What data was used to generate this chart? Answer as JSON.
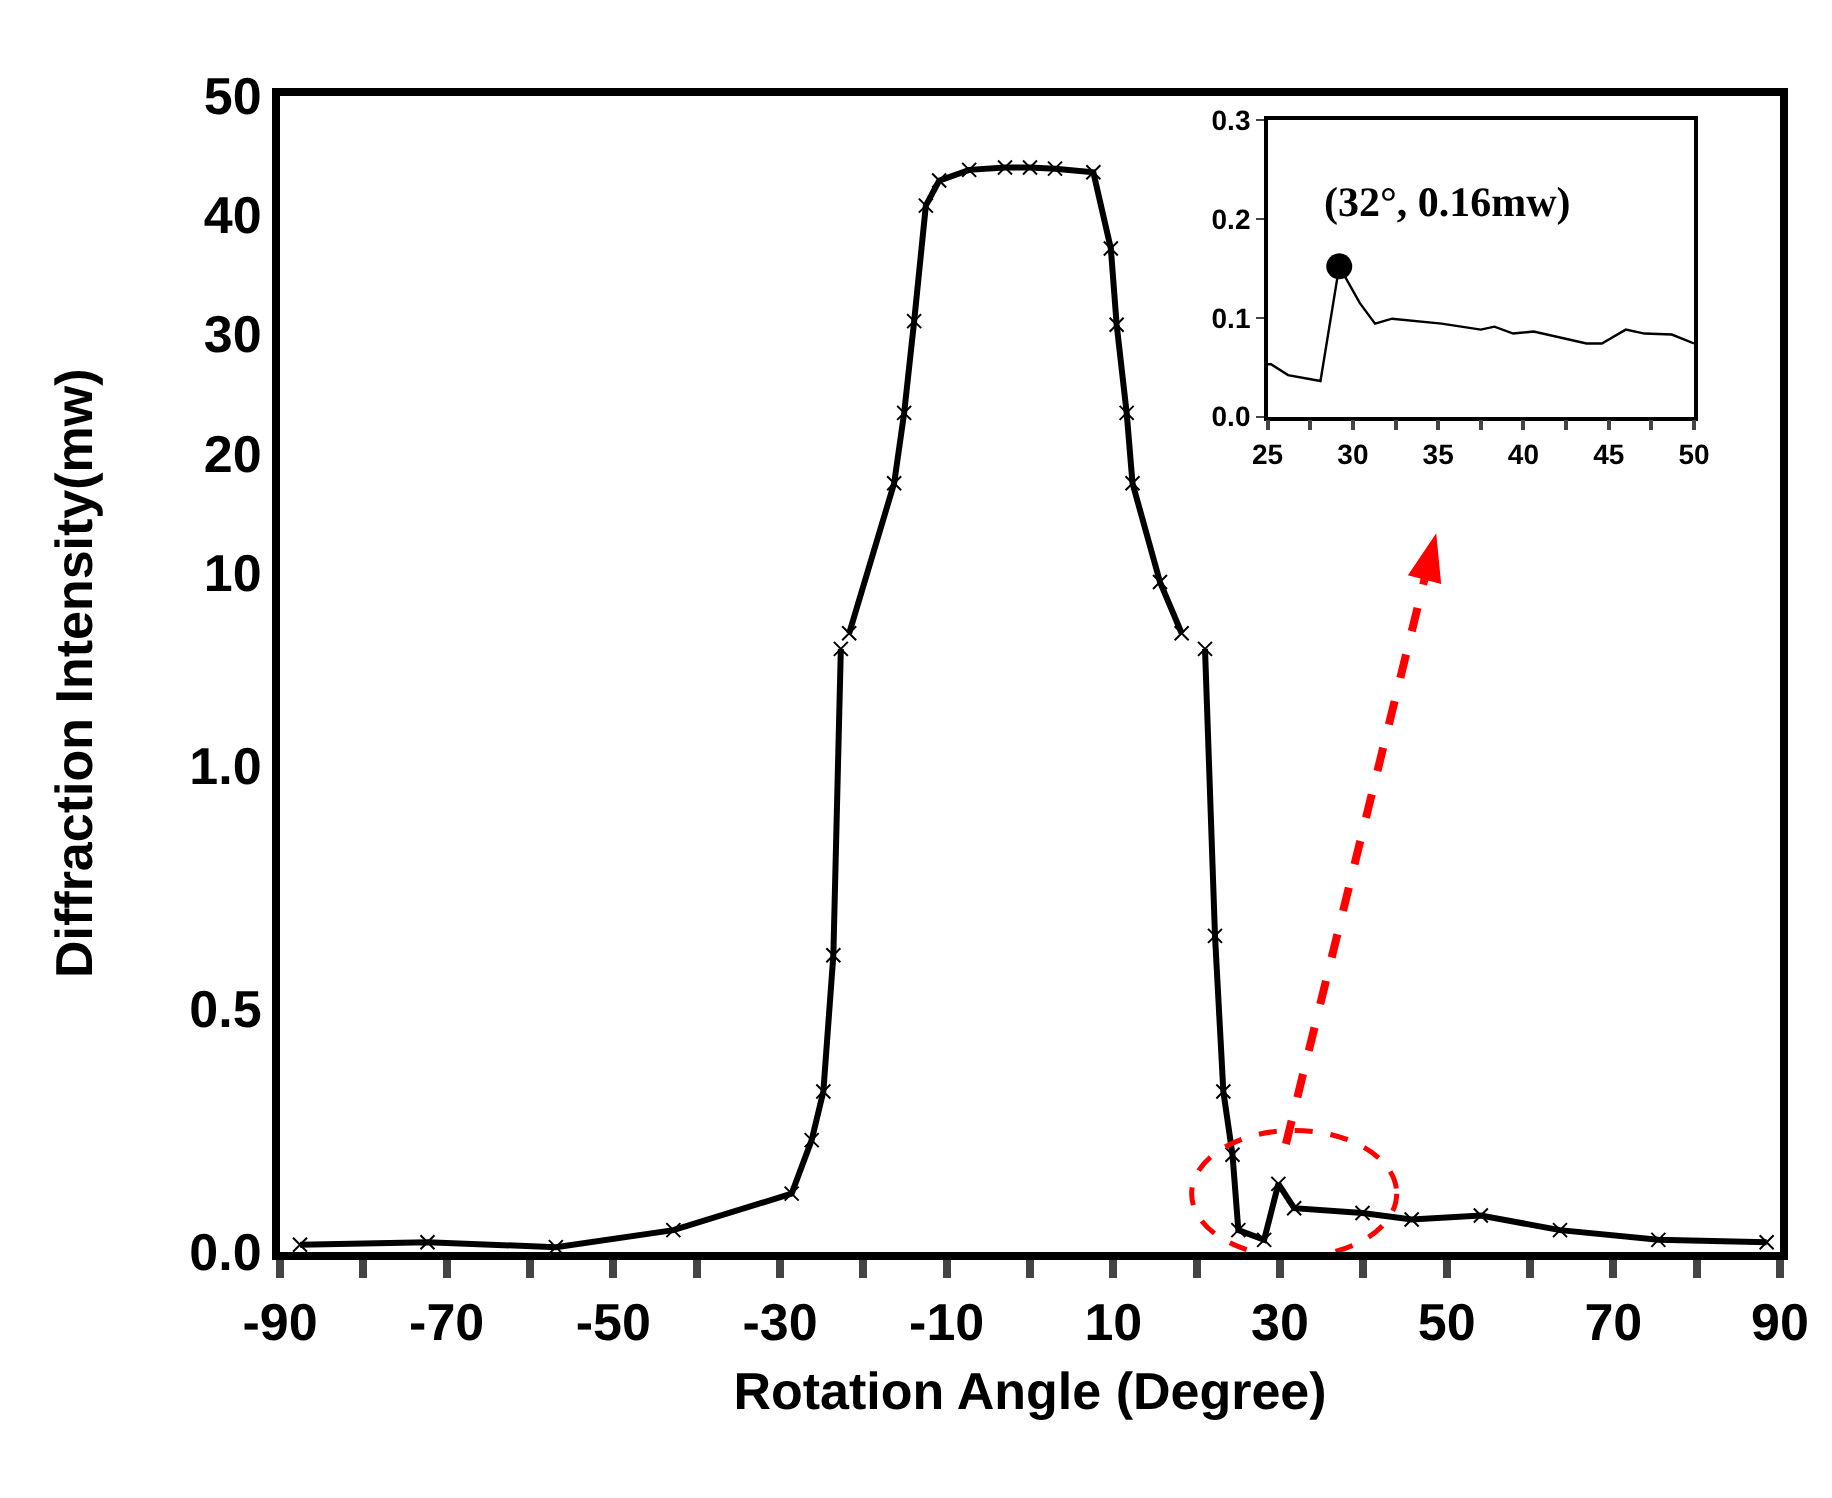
{
  "chart_data": [
    {
      "type": "line",
      "x": [
        -21.7,
        -16.3,
        -15.1,
        -13.9,
        -12.5,
        -10.9,
        -7.3,
        -3,
        0,
        3,
        7.6,
        9.7,
        10.4,
        11.6,
        12.3,
        15.6,
        18.2
      ],
      "series": [
        {
          "color": "#000000",
          "values": [
            4.9,
            17.5,
            23.4,
            31.1,
            40.8,
            42.9,
            43.8,
            44,
            44,
            43.9,
            43.6,
            37.2,
            30.8,
            23.4,
            17.5,
            9.2,
            4.9
          ]
        }
      ],
      "xlim": [
        -90,
        90
      ],
      "ylim": [
        4,
        50
      ],
      "yticks": [
        10,
        20,
        30,
        40,
        50
      ],
      "tick_labels": "y",
      "marker": "cross",
      "line_style": "solid"
    },
    {
      "type": "line",
      "x": [
        -87.6,
        -72.3,
        -56.9,
        -42.8,
        -28.6,
        -26.2,
        -24.8,
        -23.6,
        -22.7,
        0,
        21.0,
        22.2,
        23.2,
        24.3,
        25.0,
        28.1,
        29.8,
        31.7,
        39.9,
        45.8,
        54.1,
        63.6,
        75.4,
        88.4
      ],
      "series": [
        {
          "color": "#000000",
          "values": [
            0.015,
            0.02,
            0.01,
            0.045,
            0.12,
            0.23,
            0.33,
            0.61,
            1.24,
            null,
            1.24,
            0.65,
            0.33,
            0.2,
            0.045,
            0.025,
            0.14,
            0.09,
            0.08,
            0.067,
            0.075,
            0.045,
            0.025,
            0.02
          ]
        }
      ],
      "xlabel": "Rotation Angle (Degree)",
      "ylabel": "Diffraction Intensity(mw)",
      "xlim": [
        -90,
        90
      ],
      "xticks": [
        -90,
        {
          "value": -80,
          "label": null
        },
        -70,
        {
          "value": -60,
          "label": null
        },
        -50,
        {
          "value": -40,
          "label": null
        },
        -30,
        {
          "value": -20,
          "label": null
        },
        -10,
        {
          "value": 0,
          "label": null
        },
        10,
        {
          "value": 20,
          "label": null
        },
        30,
        {
          "value": 40,
          "label": null
        },
        50,
        {
          "value": 60,
          "label": null
        },
        70,
        {
          "value": 80,
          "label": null
        },
        90
      ],
      "ylim": [
        0,
        1.25
      ],
      "yticks": [
        {
          "value": 0,
          "label": "0.0"
        },
        {
          "value": 0.5,
          "label": "0.5"
        },
        {
          "value": 1,
          "label": "1.0"
        }
      ],
      "marker": "cross",
      "line_style": "solid"
    },
    {
      "type": "line",
      "x": [
        25,
        25.2,
        26.2,
        28.1,
        29.2,
        30.4,
        31.3,
        32.3,
        35.2,
        37.5,
        38.3,
        39.4,
        40.6,
        43.7,
        44.6,
        46,
        47.1,
        48.7,
        50
      ],
      "series": [
        {
          "color": "#000000",
          "values": [
            0.053,
            0.053,
            0.042,
            0.036,
            0.152,
            0.115,
            0.094,
            0.099,
            0.094,
            0.088,
            0.091,
            0.084,
            0.086,
            0.074,
            0.074,
            0.088,
            0.084,
            0.083,
            0.074
          ]
        },
        {
          "type": "scatter",
          "marker": "circle",
          "color": "#000000",
          "x": [
            29.2
          ],
          "values": [
            0.152
          ]
        }
      ],
      "annotations": [
        {
          "text": "(32°, 0.16mw)",
          "x": 29.2,
          "y": 0.152
        }
      ],
      "xlim": [
        25,
        50
      ],
      "xticks": [
        25,
        {
          "value": 27.5,
          "label": null
        },
        30,
        {
          "value": 32.5,
          "label": null
        },
        35,
        {
          "value": 37.5,
          "label": null
        },
        40,
        {
          "value": 42.5,
          "label": null
        },
        45,
        {
          "value": 47.5,
          "label": null
        },
        50
      ],
      "ylim": [
        0,
        0.3
      ],
      "yticks": [
        {
          "value": 0,
          "label": "0.0"
        },
        {
          "value": 0.1,
          "label": "0.1"
        },
        {
          "value": 0.2,
          "label": "0.2"
        },
        {
          "value": 0.3,
          "label": "0.3"
        }
      ],
      "marker": "none",
      "line_style": "solid"
    }
  ]
}
